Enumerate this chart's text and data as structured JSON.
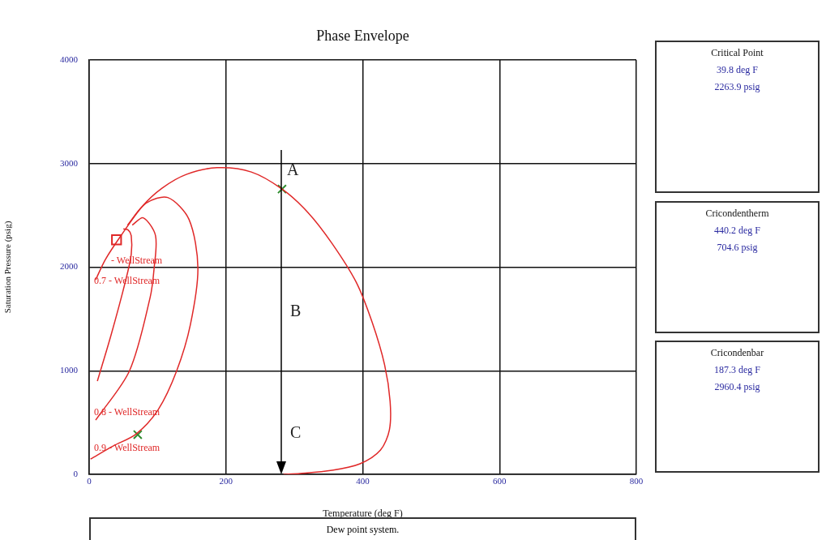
{
  "chart_data": [
    {
      "type": "line",
      "title": "Phase Envelope",
      "xlabel": "Temperature (deg F)",
      "ylabel": "Saturation Pressure (psig)",
      "xlim": [
        0,
        800
      ],
      "xticks": [
        0,
        200,
        400,
        600,
        800
      ],
      "ylim": [
        0,
        4000
      ],
      "yticks": [
        0,
        1000,
        2000,
        3000,
        4000
      ],
      "grid": true,
      "legend": false,
      "marker": "none",
      "line_style": "solid",
      "series": [
        {
          "type": "line",
          "color": "#e02828",
          "x": [
            9.5,
            23.7,
            47,
            77,
            106.5,
            142,
            187,
            237,
            282,
            320,
            355,
            390.5,
            414,
            432,
            440,
            439,
            426,
            396,
            355,
            308,
            284
          ],
          "values": [
            1878,
            2074,
            2309,
            2582,
            2762,
            2895,
            2960,
            2919,
            2754,
            2527,
            2230,
            1854,
            1463,
            1056,
            705,
            430,
            235,
            102,
            39,
            8,
            0
          ]
        },
        {
          "type": "line",
          "color": "#e02828",
          "x": [
            2,
            35,
            69,
            101,
            128,
            148,
            159,
            146,
            115,
            83,
            56
          ],
          "values": [
            148,
            273,
            391,
            625,
            1000,
            1445,
            1992,
            2461,
            2672,
            2617,
            2406
          ]
        },
        {
          "type": "line",
          "color": "#e02828",
          "x": [
            9.5,
            59,
            89,
            95,
            97,
            79,
            63
          ],
          "values": [
            523,
            1000,
            1703,
            1992,
            2305,
            2477,
            2406
          ]
        },
        {
          "type": "line",
          "color": "#e02828",
          "x": [
            12,
            32,
            53,
            61.5,
            61.5,
            57,
            50
          ],
          "values": [
            900,
            1344,
            1862,
            2125,
            2305,
            2359,
            2370
          ]
        },
        {
          "type": "scatter",
          "color": "#2e8b2e",
          "marker": "cross",
          "x": [
            282,
            71
          ],
          "values": [
            2754,
            383
          ]
        },
        {
          "type": "scatter",
          "color": "#e02828",
          "marker": "square",
          "x": [
            40
          ],
          "values": [
            2264
          ]
        }
      ],
      "annotations": [
        {
          "text": "A",
          "x": 282,
          "y": 2754
        },
        "B",
        "C",
        "- WellStream",
        "0.7 - WellStream",
        "0.8 - WellStream",
        "0.9 - WellStream",
        "Dew point system."
      ]
    },
    {
      "type": "other",
      "title": "Critical Point",
      "annotations": [
        "39.8 deg F",
        "2263.9 psig"
      ]
    },
    {
      "type": "other",
      "title": "Cricondentherm",
      "annotations": [
        "440.2 deg F",
        "704.6 psig"
      ]
    },
    {
      "type": "other",
      "title": "Cricondenbar",
      "annotations": [
        "187.3 deg F",
        "2960.4 psig"
      ]
    }
  ]
}
